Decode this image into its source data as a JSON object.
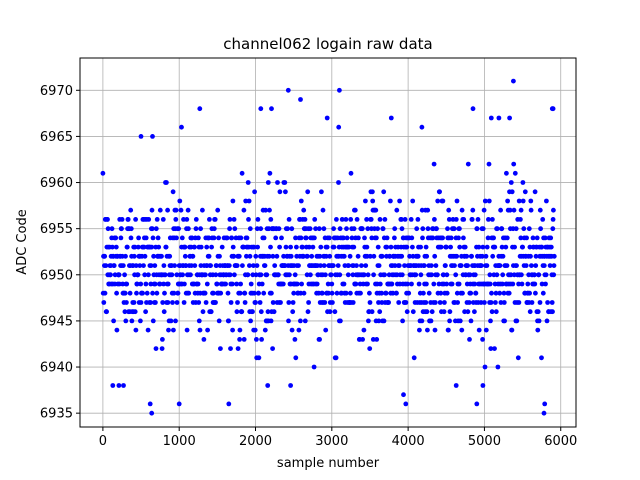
{
  "chart_data": {
    "type": "scatter",
    "title": "channel062 logain raw data",
    "xlabel": "sample number",
    "ylabel": "ADC Code",
    "xlim": [
      -300,
      6200
    ],
    "ylim": [
      6933.5,
      6973.5
    ],
    "xticks": [
      0,
      1000,
      2000,
      3000,
      4000,
      5000,
      6000
    ],
    "yticks": [
      6935,
      6940,
      6945,
      6950,
      6955,
      6960,
      6965,
      6970
    ],
    "grid": true,
    "marker_color": "#0000ff",
    "series": [
      {
        "n_samples": 5920,
        "center": 6951,
        "typical_range": [
          6942,
          6961
        ],
        "outliers": [
          {
            "x": 3100,
            "y": 6970
          },
          {
            "x": 2430,
            "y": 6970
          },
          {
            "x": 5380,
            "y": 6971
          },
          {
            "x": 2590,
            "y": 6969
          },
          {
            "x": 1270,
            "y": 6968
          },
          {
            "x": 2070,
            "y": 6968
          },
          {
            "x": 2210,
            "y": 6968
          },
          {
            "x": 4850,
            "y": 6968
          },
          {
            "x": 5890,
            "y": 6968
          },
          {
            "x": 5900,
            "y": 6968
          },
          {
            "x": 2940,
            "y": 6967
          },
          {
            "x": 3780,
            "y": 6967
          },
          {
            "x": 5090,
            "y": 6967
          },
          {
            "x": 5190,
            "y": 6967
          },
          {
            "x": 5330,
            "y": 6967
          },
          {
            "x": 1030,
            "y": 6966
          },
          {
            "x": 3090,
            "y": 6966
          },
          {
            "x": 4180,
            "y": 6966
          },
          {
            "x": 500,
            "y": 6965
          },
          {
            "x": 650,
            "y": 6965
          },
          {
            "x": 620,
            "y": 6936
          },
          {
            "x": 1000,
            "y": 6936
          },
          {
            "x": 1650,
            "y": 6936
          },
          {
            "x": 3970,
            "y": 6936
          },
          {
            "x": 4900,
            "y": 6936
          },
          {
            "x": 640,
            "y": 6935
          },
          {
            "x": 5780,
            "y": 6935
          },
          {
            "x": 3940,
            "y": 6937
          },
          {
            "x": 130,
            "y": 6938
          },
          {
            "x": 210,
            "y": 6938
          },
          {
            "x": 270,
            "y": 6938
          },
          {
            "x": 2160,
            "y": 6938
          },
          {
            "x": 2460,
            "y": 6938
          },
          {
            "x": 4630,
            "y": 6938
          },
          {
            "x": 4980,
            "y": 6938
          },
          {
            "x": 5790,
            "y": 6936
          }
        ]
      }
    ]
  }
}
